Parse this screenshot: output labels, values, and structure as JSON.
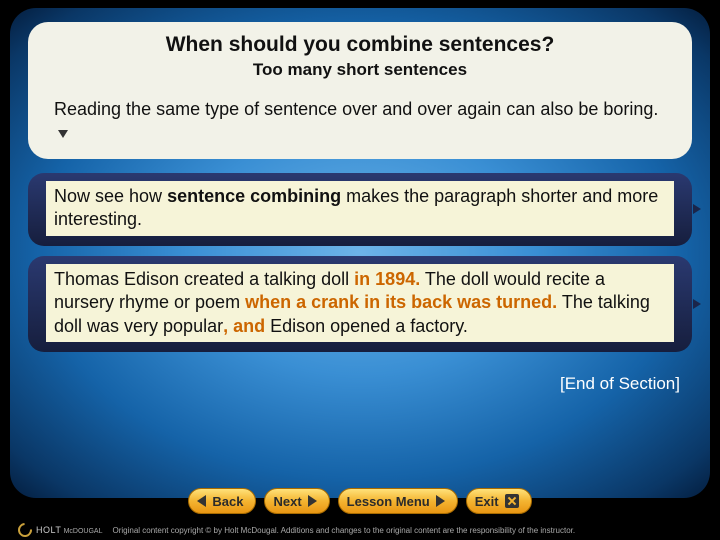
{
  "colors": {
    "panel_bg": "#f2f2e8",
    "highlight_bg": "#f6f4d8",
    "callout_bg_top": "#2a3970",
    "callout_bg_bottom": "#161e3d",
    "accent_orange": "#cc6600",
    "button_top": "#ffe27a",
    "button_bottom": "#e99613",
    "slide_gradient_center": "#6db4e8",
    "slide_gradient_edge": "#041e3f"
  },
  "title": "When should you combine sentences?",
  "subtitle": "Too many short sentences",
  "intro": "Reading the same type of sentence over and over again can also be boring.",
  "callout1": {
    "pre": "Now see how ",
    "bold": "sentence combining",
    "post": " makes the paragraph shorter and more interesting."
  },
  "callout2": {
    "p1a": "Thomas Edison created a talking doll ",
    "p1b": "in 1894.",
    "p2a": " The doll would recite a nursery rhyme or poem ",
    "p2b": "when a crank in its back was turned.",
    "p3a": " The talking doll was very popular",
    "p3b": ", and",
    "p3c": " Edison opened a factory."
  },
  "end": "[End of Section]",
  "nav": {
    "back": "Back",
    "next": "Next",
    "lesson": "Lesson Menu",
    "exit": "Exit"
  },
  "footer": {
    "brand_top": "HOLT",
    "brand_bottom": "McDOUGAL",
    "copyright": "Original content copyright © by Holt McDougal. Additions and changes to the original content are the responsibility of the instructor."
  }
}
